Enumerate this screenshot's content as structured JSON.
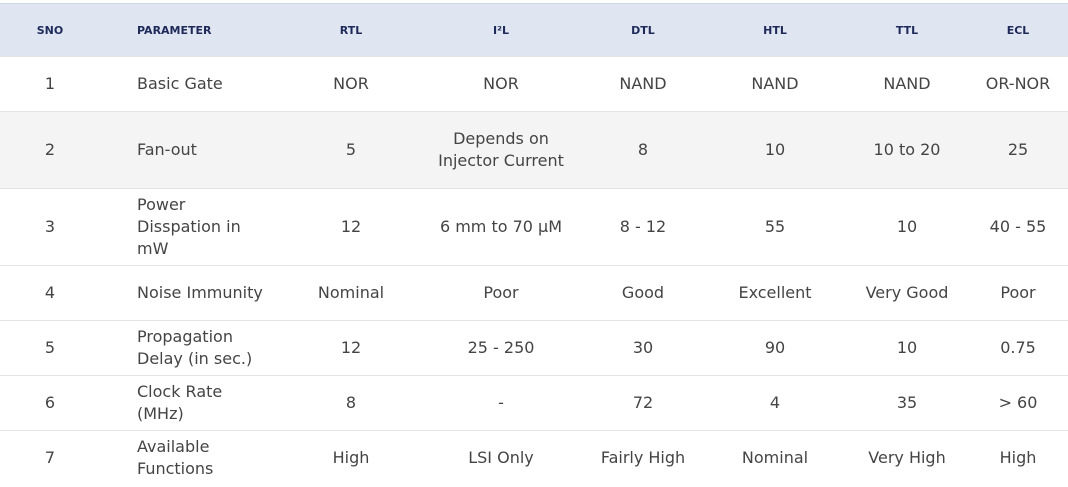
{
  "table": {
    "header": [
      "SNO",
      "PARAMETER",
      "RTL",
      "I²L",
      "DTL",
      "HTL",
      "TTL",
      "ECL"
    ],
    "rows": [
      [
        "1",
        "Basic Gate",
        "NOR",
        "NOR",
        "NAND",
        "NAND",
        "NAND",
        "OR-NOR"
      ],
      [
        "2",
        "Fan-out",
        "5",
        "Depends on Injector Current",
        "8",
        "10",
        "10 to 20",
        "25"
      ],
      [
        "3",
        "Power Disspation in mW",
        "12",
        "6 mm to 70 μM",
        "8 - 12",
        "55",
        "10",
        "40 - 55"
      ],
      [
        "4",
        "Noise Immunity",
        "Nominal",
        "Poor",
        "Good",
        "Excellent",
        "Very Good",
        "Poor"
      ],
      [
        "5",
        "Propagation Delay (in sec.)",
        "12",
        "25 - 250",
        "30",
        "90",
        "10",
        "0.75"
      ],
      [
        "6",
        "Clock Rate (MHz)",
        "8",
        "-",
        "72",
        "4",
        "35",
        "> 60"
      ],
      [
        "7",
        "Available Functions",
        "High",
        "LSI Only",
        "Fairly High",
        "Nominal",
        "Very High",
        "High"
      ]
    ]
  }
}
